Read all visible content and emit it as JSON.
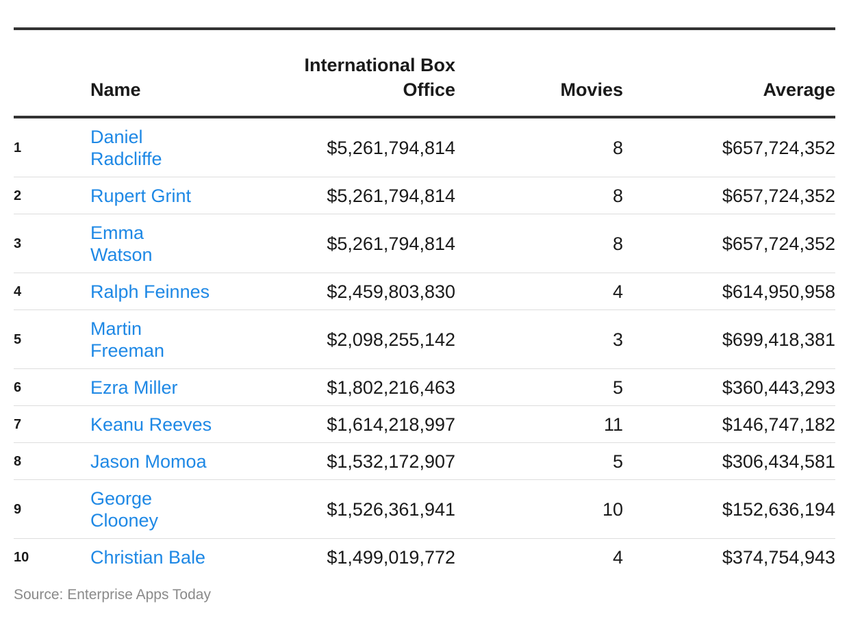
{
  "colors": {
    "link": "#1e88e5",
    "text": "#1a1a1a",
    "rule": "#333333",
    "source": "#8a8a8a"
  },
  "chart_data": {
    "type": "table",
    "columns": [
      "",
      "Name",
      "International Box Office",
      "Movies",
      "Average"
    ],
    "rows": [
      {
        "rank": "1",
        "name_lines": [
          "Daniel",
          "Radcliffe"
        ],
        "box_office": "$5,261,794,814",
        "movies": "8",
        "average": "$657,724,352"
      },
      {
        "rank": "2",
        "name_lines": [
          "Rupert Grint"
        ],
        "box_office": "$5,261,794,814",
        "movies": "8",
        "average": "$657,724,352"
      },
      {
        "rank": "3",
        "name_lines": [
          "Emma",
          "Watson"
        ],
        "box_office": "$5,261,794,814",
        "movies": "8",
        "average": "$657,724,352"
      },
      {
        "rank": "4",
        "name_lines": [
          "Ralph Feinnes"
        ],
        "box_office": "$2,459,803,830",
        "movies": "4",
        "average": "$614,950,958"
      },
      {
        "rank": "5",
        "name_lines": [
          "Martin",
          "Freeman"
        ],
        "box_office": "$2,098,255,142",
        "movies": "3",
        "average": "$699,418,381"
      },
      {
        "rank": "6",
        "name_lines": [
          "Ezra Miller"
        ],
        "box_office": "$1,802,216,463",
        "movies": "5",
        "average": "$360,443,293"
      },
      {
        "rank": "7",
        "name_lines": [
          "Keanu Reeves"
        ],
        "box_office": "$1,614,218,997",
        "movies": "11",
        "average": "$146,747,182"
      },
      {
        "rank": "8",
        "name_lines": [
          "Jason Momoa"
        ],
        "box_office": "$1,532,172,907",
        "movies": "5",
        "average": "$306,434,581"
      },
      {
        "rank": "9",
        "name_lines": [
          "George",
          "Clooney"
        ],
        "box_office": "$1,526,361,941",
        "movies": "10",
        "average": "$152,636,194"
      },
      {
        "rank": "10",
        "name_lines": [
          "Christian Bale"
        ],
        "box_office": "$1,499,019,772",
        "movies": "4",
        "average": "$374,754,943"
      }
    ],
    "source": "Source: Enterprise Apps Today"
  }
}
